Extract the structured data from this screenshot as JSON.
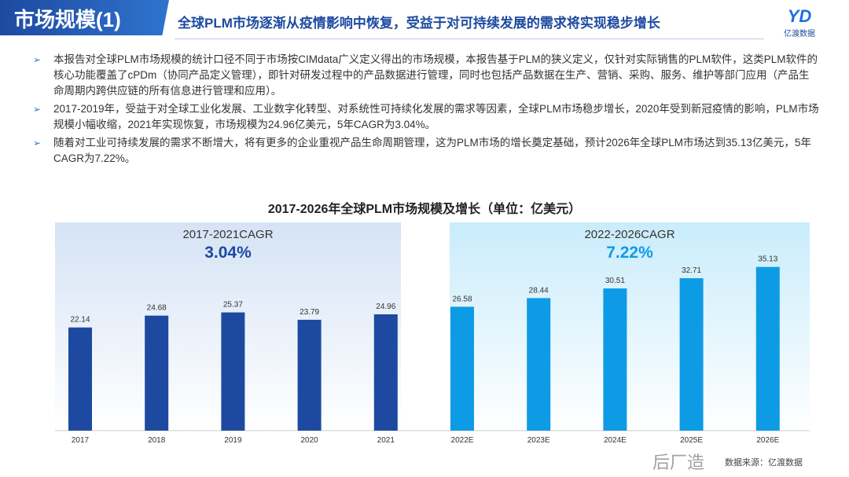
{
  "header": {
    "title": "市场规模(1)",
    "subtitle": "全球PLM市场逐渐从疫情影响中恢复，受益于对可持续发展的需求将实现稳步增长",
    "logo_text": "亿渡数据"
  },
  "bullets": [
    "本报告对全球PLM市场规模的统计口径不同于市场按CIMdata广义定义得出的市场规模，本报告基于PLM的狭义定义，仅针对实际销售的PLM软件，这类PLM软件的核心功能覆盖了cPDm（协同产品定义管理），即针对研发过程中的产品数据进行管理，同时也包括产品数据在生产、营销、采购、服务、维护等部门应用（产品生命周期内跨供应链的所有信息进行管理和应用）。",
    "2017-2019年，受益于对全球工业化发展、工业数字化转型、对系统性可持续化发展的需求等因素，全球PLM市场稳步增长，2020年受到新冠疫情的影响，PLM市场规模小幅收缩，2021年实现恢复，市场规模为24.96亿美元，5年CAGR为3.04%。",
    "随着对工业可持续发展的需求不断增大，将有更多的企业重视产品生命周期管理，这为PLM市场的增长奠定基础，预计2026年全球PLM市场达到35.13亿美元，5年CAGR为7.22%。"
  ],
  "chart_data": {
    "type": "bar",
    "title": "2017-2026年全球PLM市场规模及增长（单位：亿美元）",
    "categories": [
      "2017",
      "2018",
      "2019",
      "2020",
      "2021",
      "2022E",
      "2023E",
      "2024E",
      "2025E",
      "2026E"
    ],
    "values": [
      22.14,
      24.68,
      25.37,
      23.79,
      24.96,
      26.58,
      28.44,
      30.51,
      32.71,
      35.13
    ],
    "labels": [
      "22.14",
      "24.68",
      "25.37",
      "23.79",
      "24.96",
      "26.58",
      "28.44",
      "30.51",
      "32.71",
      "35.13"
    ],
    "ylim": [
      0,
      40
    ],
    "annotations": [
      {
        "label": "2017-2021CAGR",
        "value": "3.04%"
      },
      {
        "label": "2022-2026CAGR",
        "value": "7.22%"
      }
    ],
    "colors": {
      "historical": "#1d4aa0",
      "forecast": "#0e9be6"
    }
  },
  "source": "数据来源：亿渡数据",
  "watermark": "后厂造"
}
